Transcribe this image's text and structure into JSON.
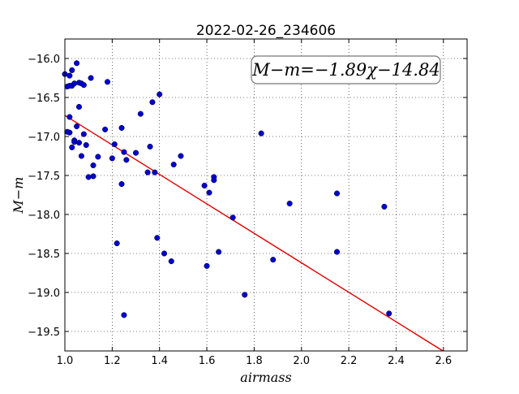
{
  "chart_data": {
    "type": "scatter",
    "title": "2022-02-26_234606",
    "xlabel": "airmass",
    "ylabel": "M−m",
    "xlim": [
      1.0,
      2.7
    ],
    "ylim": [
      -19.75,
      -15.75
    ],
    "y_inverted": true,
    "grid": true,
    "xticks": [
      1.0,
      1.2,
      1.4,
      1.6,
      1.8,
      2.0,
      2.2,
      2.4,
      2.6
    ],
    "xtick_labels": [
      "1.0",
      "1.2",
      "1.4",
      "1.6",
      "1.8",
      "2.0",
      "2.2",
      "2.4",
      "2.6"
    ],
    "yticks": [
      -16.0,
      -16.5,
      -17.0,
      -17.5,
      -18.0,
      -18.5,
      -19.0,
      -19.5
    ],
    "ytick_labels": [
      "−16.0",
      "−16.5",
      "−17.0",
      "−17.5",
      "−18.0",
      "−18.5",
      "−19.0",
      "−19.5"
    ],
    "annotation": "M−m=−1.89χ−14.84",
    "fit": {
      "slope": -1.89,
      "intercept": -14.84,
      "x_range": [
        1.0,
        2.7
      ],
      "color": "#e00000"
    },
    "point_color": "#0000cc",
    "series": [
      {
        "x": [
          1.0,
          1.01,
          1.01,
          1.02,
          1.02,
          1.02,
          1.03,
          1.03,
          1.04,
          1.05,
          1.05,
          1.06,
          1.06,
          1.07,
          1.08,
          1.02,
          1.03,
          1.04,
          1.04,
          1.06,
          1.07,
          1.08,
          1.09,
          1.1,
          1.11,
          1.12,
          1.12,
          1.14,
          1.17,
          1.18,
          1.2,
          1.21,
          1.22,
          1.24,
          1.24,
          1.25,
          1.26,
          1.3,
          1.32,
          1.35,
          1.36,
          1.37,
          1.38,
          1.39,
          1.4,
          1.42,
          1.45,
          1.46,
          1.49,
          1.25,
          1.59,
          1.6,
          1.61,
          1.63,
          1.63,
          1.65,
          1.71,
          1.76,
          1.83,
          1.88,
          1.95,
          2.15,
          2.15,
          2.35,
          2.37
        ],
        "y": [
          -16.2,
          -16.36,
          -16.94,
          -16.35,
          -16.95,
          -16.22,
          -16.15,
          -16.35,
          -17.05,
          -16.87,
          -16.06,
          -16.31,
          -16.62,
          -16.32,
          -16.34,
          -16.75,
          -17.14,
          -17.07,
          -16.32,
          -17.08,
          -17.25,
          -16.97,
          -17.11,
          -17.52,
          -16.25,
          -17.51,
          -17.37,
          -17.26,
          -16.91,
          -16.3,
          -17.28,
          -17.1,
          -18.37,
          -17.61,
          -16.89,
          -17.2,
          -17.3,
          -17.21,
          -16.71,
          -17.46,
          -17.13,
          -16.56,
          -17.46,
          -18.3,
          -16.46,
          -18.5,
          -18.6,
          -17.36,
          -17.25,
          -19.29,
          -17.63,
          -18.66,
          -17.72,
          -17.52,
          -17.56,
          -18.48,
          -18.04,
          -19.03,
          -16.96,
          -18.58,
          -17.86,
          -18.48,
          -17.73,
          -17.9,
          -19.27
        ]
      }
    ]
  }
}
